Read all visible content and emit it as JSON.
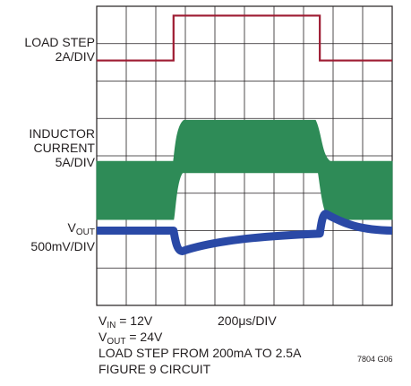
{
  "chart_data": {
    "type": "line",
    "title": "",
    "x_divisions": 10,
    "y_divisions": 8,
    "x_scale": "200μs/DIV",
    "series": [
      {
        "name": "LOAD STEP",
        "scale": "2A/DIV",
        "color": "#9e1b32",
        "levels": {
          "low_div": 6.55,
          "high_div": 7.75
        },
        "step_up_div": 2.6,
        "step_down_div": 7.55
      },
      {
        "name": "INDUCTOR CURRENT",
        "scale": "5A/DIV",
        "color": "#2e8b57",
        "envelope_low": {
          "top_div": 3.85,
          "bottom_div": 2.3
        },
        "envelope_high": {
          "top_div": 4.95,
          "bottom_div": 3.55
        }
      },
      {
        "name": "VOUT",
        "scale": "500mV/DIV",
        "color": "#2a49a6",
        "baseline_div": 2.0,
        "undershoot_div": 1.45,
        "overshoot_div": 2.45
      }
    ],
    "grid": true
  },
  "labels": {
    "load_step": "LOAD STEP",
    "load_step_scale": "2A/DIV",
    "inductor_1": "INDUCTOR",
    "inductor_2": "CURRENT",
    "inductor_scale": "5A/DIV",
    "vout_main": "V",
    "vout_sub": "OUT",
    "vout_scale": "500mV/DIV"
  },
  "notes": {
    "vin_main": "V",
    "vin_sub": "IN",
    "vin_value": " = 12V",
    "time_div": "200μs/DIV",
    "vout_main": "V",
    "vout_sub": "OUT",
    "vout_value": " = 24V",
    "load_step_text": "LOAD STEP FROM 200mA TO 2.5A",
    "circuit": "FIGURE 9 CIRCUIT",
    "figure_id": "7804 G06"
  }
}
